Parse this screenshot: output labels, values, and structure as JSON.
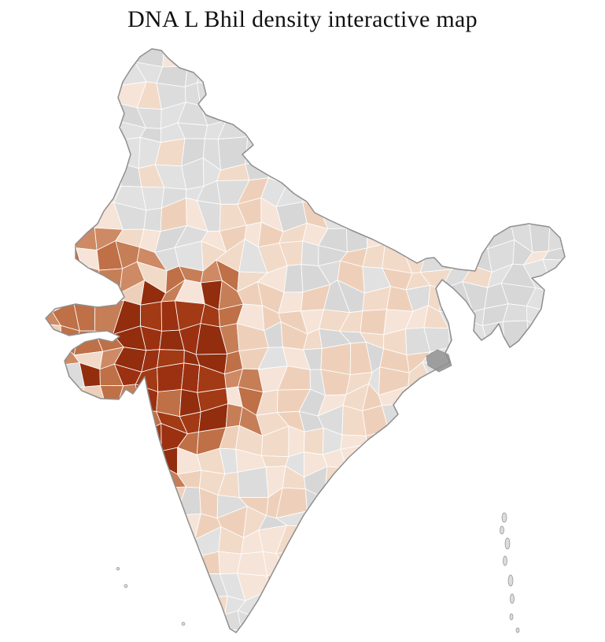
{
  "page": {
    "title": "DNA L Bhil density interactive map"
  },
  "map": {
    "region": "India",
    "type": "district-choropleth",
    "background_color": "#ffffff",
    "outline_color": "#8f8f8f",
    "district_border_color": "#ffffff",
    "delta_patch_color": "#9e9e9e",
    "palette": {
      "no_data": [
        "#dcdcdc",
        "#d7d7d7",
        "#e1e1e1"
      ],
      "low": [
        "#f6e4d8",
        "#f2dac8",
        "#eed0ba"
      ],
      "medium": [
        "#c67e57",
        "#bf7046",
        "#cd8a64"
      ],
      "high": [
        "#9b3111",
        "#922d0d",
        "#a23a15"
      ]
    }
  }
}
